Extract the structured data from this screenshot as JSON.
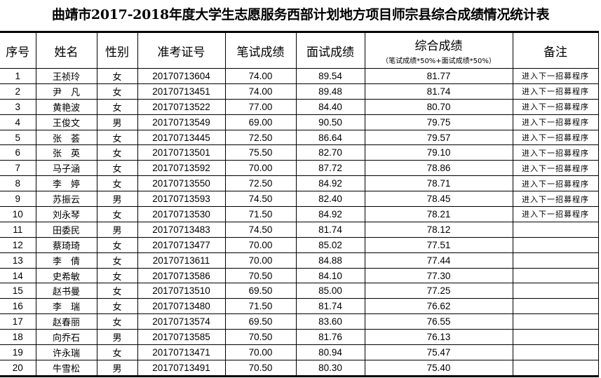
{
  "title": "曲靖市2017-2018年度大学生志愿服务西部计划地方项目师宗县综合成绩情况统计表",
  "headers": {
    "index": "序号",
    "name": "姓名",
    "gender": "性别",
    "exam_id": "准考证号",
    "written": "笔试成绩",
    "interview": "面试成绩",
    "total": "综合成绩",
    "total_formula": "（笔试成绩*50%+面试成绩*50%）",
    "note": "备注"
  },
  "rows": [
    {
      "no": "1",
      "name": "王祯玲",
      "gender": "女",
      "id": "20170713604",
      "written": "74.00",
      "interview": "89.54",
      "total": "81.77",
      "note": "进入下一招募程序"
    },
    {
      "no": "2",
      "name": "尹　凡",
      "gender": "女",
      "id": "20170713451",
      "written": "74.00",
      "interview": "89.48",
      "total": "81.74",
      "note": "进入下一招募程序"
    },
    {
      "no": "3",
      "name": "黄艳波",
      "gender": "女",
      "id": "20170713522",
      "written": "77.00",
      "interview": "84.40",
      "total": "80.70",
      "note": "进入下一招募程序"
    },
    {
      "no": "4",
      "name": "王俊文",
      "gender": "男",
      "id": "20170713549",
      "written": "69.00",
      "interview": "90.50",
      "total": "79.75",
      "note": "进入下一招募程序"
    },
    {
      "no": "5",
      "name": "张　荟",
      "gender": "女",
      "id": "20170713445",
      "written": "72.50",
      "interview": "86.64",
      "total": "79.57",
      "note": "进入下一招募程序"
    },
    {
      "no": "6",
      "name": "张　英",
      "gender": "女",
      "id": "20170713501",
      "written": "75.50",
      "interview": "82.70",
      "total": "79.10",
      "note": "进入下一招募程序"
    },
    {
      "no": "7",
      "name": "马子涵",
      "gender": "女",
      "id": "20170713592",
      "written": "70.00",
      "interview": "87.72",
      "total": "78.86",
      "note": "进入下一招募程序"
    },
    {
      "no": "8",
      "name": "李　婷",
      "gender": "女",
      "id": "20170713550",
      "written": "72.50",
      "interview": "84.92",
      "total": "78.71",
      "note": "进入下一招募程序"
    },
    {
      "no": "9",
      "name": "苏振云",
      "gender": "男",
      "id": "20170713593",
      "written": "74.50",
      "interview": "82.40",
      "total": "78.45",
      "note": "进入下一招募程序"
    },
    {
      "no": "10",
      "name": "刘永琴",
      "gender": "女",
      "id": "20170713530",
      "written": "71.50",
      "interview": "84.92",
      "total": "78.21",
      "note": "进入下一招募程序"
    },
    {
      "no": "11",
      "name": "田委民",
      "gender": "男",
      "id": "20170713483",
      "written": "74.50",
      "interview": "81.74",
      "total": "78.12",
      "note": ""
    },
    {
      "no": "12",
      "name": "蔡琦琦",
      "gender": "女",
      "id": "20170713477",
      "written": "70.00",
      "interview": "85.02",
      "total": "77.51",
      "note": ""
    },
    {
      "no": "13",
      "name": "李　倩",
      "gender": "女",
      "id": "20170713611",
      "written": "70.00",
      "interview": "84.88",
      "total": "77.44",
      "note": ""
    },
    {
      "no": "14",
      "name": "史希敏",
      "gender": "女",
      "id": "20170713586",
      "written": "70.50",
      "interview": "84.10",
      "total": "77.30",
      "note": ""
    },
    {
      "no": "15",
      "name": "赵书曼",
      "gender": "女",
      "id": "20170713510",
      "written": "69.50",
      "interview": "85.00",
      "total": "77.25",
      "note": ""
    },
    {
      "no": "16",
      "name": "李　瑞",
      "gender": "女",
      "id": "20170713480",
      "written": "71.50",
      "interview": "81.74",
      "total": "76.62",
      "note": ""
    },
    {
      "no": "17",
      "name": "赵春丽",
      "gender": "女",
      "id": "20170713574",
      "written": "69.50",
      "interview": "83.60",
      "total": "76.55",
      "note": ""
    },
    {
      "no": "18",
      "name": "向乔石",
      "gender": "男",
      "id": "20170713585",
      "written": "70.50",
      "interview": "81.76",
      "total": "76.13",
      "note": ""
    },
    {
      "no": "19",
      "name": "许永瑞",
      "gender": "女",
      "id": "20170713471",
      "written": "70.00",
      "interview": "80.94",
      "total": "75.47",
      "note": ""
    },
    {
      "no": "20",
      "name": "牛雪松",
      "gender": "男",
      "id": "20170713491",
      "written": "70.50",
      "interview": "80.30",
      "total": "75.40",
      "note": ""
    }
  ]
}
